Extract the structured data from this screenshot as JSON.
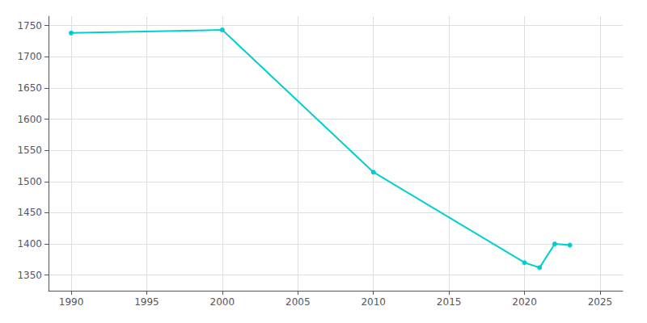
{
  "chart_data": {
    "type": "line",
    "x": [
      1990,
      2000,
      2010,
      2020,
      2021,
      2022,
      2023
    ],
    "values": [
      1738,
      1743,
      1515,
      1370,
      1362,
      1400,
      1398
    ],
    "color": "#00CED1",
    "marker": "circle",
    "xlim": [
      1988.5,
      2026.5
    ],
    "ylim": [
      1325,
      1765
    ],
    "xticks": [
      1990,
      1995,
      2000,
      2005,
      2010,
      2015,
      2020,
      2025
    ],
    "yticks": [
      1350,
      1400,
      1450,
      1500,
      1550,
      1600,
      1650,
      1700,
      1750
    ],
    "grid": true
  }
}
